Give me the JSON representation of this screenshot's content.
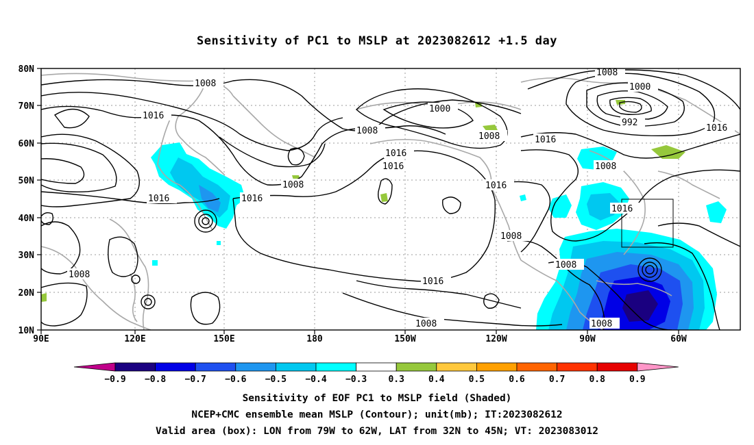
{
  "title": "Sensitivity of PC1 to MSLP at 2023082612 +1.5 day",
  "axes": {
    "lat_labels": [
      "80N",
      "70N",
      "60N",
      "50N",
      "40N",
      "30N",
      "20N",
      "10N"
    ],
    "lon_labels": [
      "90E",
      "120E",
      "150E",
      "180",
      "150W",
      "120W",
      "90W",
      "60W"
    ]
  },
  "contour_labels": {
    "c1008_a": "1008",
    "c1016_a": "1016",
    "c1016_b": "1016",
    "c1016_c": "1016",
    "c1008_b": "1008",
    "c1000_a": "1000",
    "c1008_c": "1008",
    "c1008_d": "1008",
    "c1016_d": "1016",
    "c1016_e": "1016",
    "c1008_e": "1008",
    "c1016_f": "1016",
    "c1008_top": "1008",
    "c1000_b": "1000",
    "c992": "992",
    "c1016_g": "1016",
    "c1016_h": "1016",
    "c1008_f": "1008",
    "c1016_i": "1016",
    "c1008_g": "1008",
    "c1008_h": "1008",
    "c1016_j": "1016",
    "c1008_i": "1008",
    "c1008_j": "1008"
  },
  "colorbar": {
    "labels": [
      "-0.9",
      "-0.8",
      "-0.7",
      "-0.6",
      "-0.5",
      "-0.4",
      "-0.3",
      "0.3",
      "0.4",
      "0.5",
      "0.6",
      "0.7",
      "0.8",
      "0.9"
    ],
    "colors": [
      "#c0008a",
      "#1a0080",
      "#0000e6",
      "#1e50f0",
      "#1e96f0",
      "#00c8f0",
      "#00ffff",
      "#ffffff",
      "#96c83c",
      "#ffc83c",
      "#ffa000",
      "#ff6400",
      "#ff3200",
      "#e60000",
      "#ff96c8"
    ]
  },
  "footer": {
    "line1": "Sensitivity of EOF PC1 to MSLP field (Shaded)",
    "line2": "NCEP+CMC ensemble mean MSLP (Contour); unit(mb); IT:2023082612",
    "line3": "Valid area (box): LON from 79W to 62W, LAT from 32N to 45N; VT: 2023083012"
  }
}
